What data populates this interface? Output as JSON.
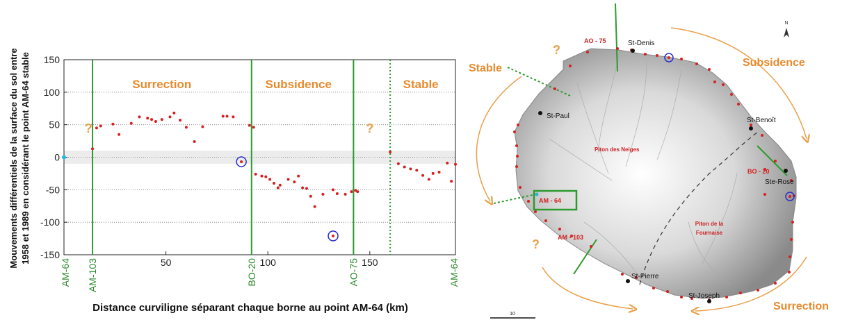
{
  "chart_data": {
    "type": "scatter",
    "xlabel": "Distance curviligne séparant chaque borne au point AM-64 (km)",
    "ylabel_line1": "Mouvements différentiels de la surface du sol entre",
    "ylabel_line2": "1958 et 1989 en considérant le point AM-64 stable",
    "xlim": [
      0,
      192
    ],
    "ylim": [
      -150,
      150
    ],
    "xticks": [
      50,
      100,
      150
    ],
    "yticks": [
      150,
      100,
      50,
      0,
      -50,
      -100,
      -150
    ],
    "grid_y": true,
    "zones": [
      {
        "label": "Surrection",
        "x": 48
      },
      {
        "label": "Subsidence",
        "x": 115
      },
      {
        "label": "Stable",
        "x": 175
      }
    ],
    "question_marks": [
      {
        "label": "?",
        "x": 12,
        "y": 38
      },
      {
        "label": "?",
        "x": 150,
        "y": 38
      }
    ],
    "boundaries": [
      {
        "name": "AM-64",
        "x": 0,
        "style": "none"
      },
      {
        "name": "AM-103",
        "x": 14,
        "style": "solid"
      },
      {
        "name": "BO-20",
        "x": 92,
        "style": "solid"
      },
      {
        "name": "AO-75",
        "x": 142,
        "style": "solid"
      },
      {
        "name": "",
        "x": 160,
        "style": "dotted"
      },
      {
        "name": "AM-64",
        "x": 192,
        "style": "none"
      }
    ],
    "reference_point": {
      "name": "AM-64",
      "x": 0,
      "y": 0
    },
    "series": [
      {
        "points": [
          [
            14,
            13
          ],
          [
            16,
            45
          ],
          [
            18,
            48
          ],
          [
            24,
            51
          ],
          [
            27,
            35
          ],
          [
            33,
            52
          ],
          [
            37,
            62
          ],
          [
            41,
            60
          ],
          [
            43,
            58
          ],
          [
            45,
            55
          ],
          [
            48,
            58
          ],
          [
            52,
            62
          ],
          [
            54,
            68
          ],
          [
            57,
            57
          ],
          [
            60,
            46
          ],
          [
            64,
            24
          ],
          [
            68,
            47
          ],
          [
            78,
            63
          ],
          [
            80,
            63
          ],
          [
            83,
            62
          ],
          [
            87,
            -7
          ],
          [
            91,
            49
          ],
          [
            93,
            46
          ],
          [
            94,
            -26
          ],
          [
            97,
            -29
          ],
          [
            99,
            -30
          ],
          [
            101,
            -34
          ],
          [
            103,
            -40
          ],
          [
            105,
            -47
          ],
          [
            106,
            -43
          ],
          [
            110,
            -34
          ],
          [
            113,
            -38
          ],
          [
            115,
            -29
          ],
          [
            117,
            -47
          ],
          [
            119,
            -48
          ],
          [
            121,
            -60
          ],
          [
            123,
            -76
          ],
          [
            127,
            -57
          ],
          [
            132,
            -50
          ],
          [
            132,
            -121
          ],
          [
            134,
            -56
          ],
          [
            138,
            -57
          ],
          [
            141,
            -53
          ],
          [
            143,
            -51
          ],
          [
            144,
            -53
          ],
          [
            160,
            8
          ],
          [
            164,
            -10
          ],
          [
            167,
            -15
          ],
          [
            170,
            -18
          ],
          [
            173,
            -20
          ],
          [
            176,
            -28
          ],
          [
            179,
            -34
          ],
          [
            181,
            -25
          ],
          [
            184,
            -23
          ],
          [
            188,
            -9
          ],
          [
            190,
            -37
          ],
          [
            192,
            -11
          ]
        ]
      }
    ],
    "circled_points": [
      [
        87,
        -7
      ],
      [
        132,
        -121
      ]
    ]
  },
  "map": {
    "towns": [
      "St-Denis",
      "St-Paul",
      "St-Benoît",
      "Ste-Rose",
      "St-Pierre",
      "St-Joseph"
    ],
    "benchmarks": [
      "AO - 75",
      "BO - 20",
      "AM - 64",
      "AM - 103"
    ],
    "massifs": [
      "Piton des Neiges",
      "Piton de la",
      "Fournaise"
    ],
    "zones": [
      "Stable",
      "Subsidence",
      "Surrection"
    ],
    "question_mark": "?",
    "north": "N",
    "scale": "10",
    "colors": {
      "zone": "#e88a2e",
      "green": "#2e9a2e",
      "red": "#d42020",
      "blue": "#2a2ad0"
    }
  }
}
